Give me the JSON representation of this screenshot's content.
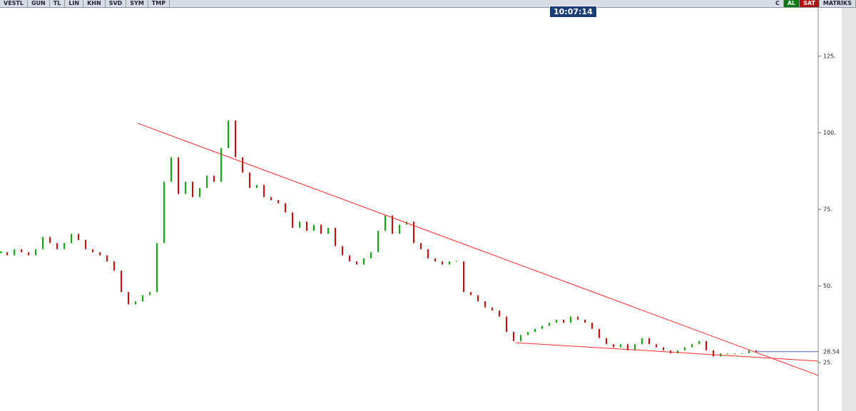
{
  "toolbar": {
    "symbol": "VESTL",
    "buttons": [
      "GUN",
      "TL",
      "LIN",
      "KHN",
      "SVD",
      "SYM",
      "TMP"
    ],
    "clock": "10:07:14",
    "right": [
      "C",
      "AL",
      "SAT",
      "MATRİKS"
    ]
  },
  "chart_data": {
    "type": "price-bars",
    "values": [
      61,
      60,
      62,
      61,
      60,
      62,
      66,
      64,
      62,
      64,
      67,
      65,
      62,
      61,
      60,
      58,
      55,
      48,
      44,
      45,
      47,
      48,
      64,
      84,
      92,
      80,
      84,
      79,
      82,
      86,
      84,
      95,
      104,
      92,
      87,
      82,
      83,
      79,
      78,
      77,
      74,
      69,
      71,
      68,
      70,
      67,
      69,
      63,
      60,
      58,
      57,
      59,
      61,
      68,
      73,
      67,
      70,
      71,
      64,
      62,
      59,
      58,
      57,
      58,
      58,
      48,
      47,
      45,
      43,
      42,
      40,
      35,
      32,
      34,
      35,
      36,
      37,
      38,
      39,
      38,
      40,
      39,
      38,
      36,
      33,
      31,
      30,
      31,
      29,
      31,
      33,
      31,
      30,
      29,
      28,
      29,
      30,
      31,
      32,
      29,
      27,
      28,
      28,
      28,
      28,
      29,
      28.54
    ],
    "value_labels": [
      "61",
      "60",
      "62",
      "61",
      "60",
      "62",
      "66",
      "64",
      "62",
      "64",
      "67",
      "65",
      "62",
      "61",
      "60",
      "58",
      "55",
      "48",
      "44",
      "45",
      "47",
      "48",
      "64",
      "84",
      "92",
      "80",
      "84",
      "79",
      "82",
      "86",
      "84",
      "95",
      "104",
      "92",
      "87",
      "82",
      "83",
      "79",
      "78",
      "77",
      "74",
      "69",
      "71",
      "68",
      "70",
      "67",
      "69",
      "63",
      "60",
      "58",
      "57",
      "59",
      "61",
      "68",
      "73",
      "67",
      "70",
      "71",
      "64",
      "62",
      "59",
      "58",
      "57",
      "58",
      "58",
      "48",
      "47",
      "45",
      "43",
      "42",
      "40",
      "35",
      "32",
      "34",
      "35",
      "36",
      "37",
      "38",
      "39",
      "38",
      "40",
      "39",
      "38",
      "36",
      "33",
      "31",
      "30",
      "31",
      "29",
      "31",
      "33",
      "31",
      "30",
      "29",
      "28",
      "29",
      "30",
      "31",
      "32",
      "29",
      "27",
      "28",
      "28",
      "28",
      "28",
      "29",
      "28.54"
    ],
    "up_color": "#00b000",
    "down_color": "#e00000",
    "last_color": "#5566cc",
    "xlim": [
      0,
      114.7
    ],
    "ylim": [
      9.2,
      141
    ],
    "yticks": [
      {
        "value": 125,
        "label": "125."
      },
      {
        "value": 100,
        "label": "100."
      },
      {
        "value": 75,
        "label": "75."
      },
      {
        "value": 50,
        "label": "50."
      },
      {
        "value": 25,
        "label": "25."
      }
    ],
    "trendlines": [
      {
        "x": [
          19.3,
          114.7
        ],
        "y": [
          103.1,
          20.8
        ],
        "color": "#ff2a2a"
      },
      {
        "x": [
          72.3,
          114.7
        ],
        "y": [
          31.5,
          25.5
        ],
        "color": "#ff2a2a"
      }
    ]
  }
}
